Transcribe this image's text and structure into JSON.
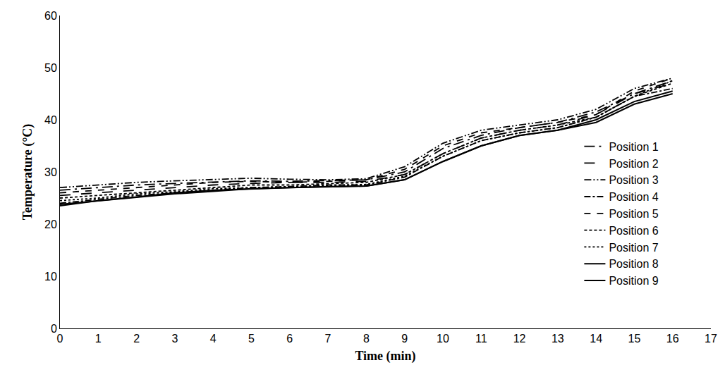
{
  "chart_data": {
    "type": "line",
    "x_label": "Time (min)",
    "y_label": "Temperature (°C)",
    "x": [
      0,
      1,
      2,
      3,
      4,
      5,
      6,
      7,
      8,
      9,
      10,
      11,
      12,
      13,
      14,
      15,
      16
    ],
    "xlim": [
      0,
      17
    ],
    "xticks": [
      0,
      1,
      2,
      3,
      4,
      5,
      6,
      7,
      8,
      9,
      10,
      11,
      12,
      13,
      14,
      15,
      16,
      17
    ],
    "ylim": [
      0,
      60
    ],
    "yticks": [
      0,
      10,
      20,
      30,
      40,
      50,
      60
    ],
    "grid": false,
    "legend": "right",
    "series": [
      {
        "name": "Position 1",
        "color": "#000000",
        "line_style": "longdashdot",
        "values": [
          26.5,
          27,
          27.5,
          27.8,
          28,
          28.3,
          28.2,
          28.3,
          28.5,
          30,
          34.5,
          37,
          38.5,
          39.5,
          41.5,
          45,
          47.5
        ]
      },
      {
        "name": "Position 2",
        "color": "#000000",
        "line_style": "longdash",
        "values": [
          25.5,
          26,
          26.5,
          27,
          27.5,
          27.8,
          28,
          28,
          28.2,
          29.5,
          33.5,
          36.5,
          38,
          39,
          41,
          45,
          47
        ]
      },
      {
        "name": "Position 3",
        "color": "#000000",
        "line_style": "dashdotdot",
        "values": [
          27,
          27.5,
          28,
          28.3,
          28.5,
          28.8,
          28.6,
          28.5,
          28.7,
          31,
          35.5,
          38,
          39,
          40,
          42,
          46,
          48
        ]
      },
      {
        "name": "Position 4",
        "color": "#000000",
        "line_style": "dashdot",
        "values": [
          24,
          24.8,
          25.5,
          26,
          26.5,
          27,
          27.2,
          27.5,
          27.5,
          29,
          33,
          36,
          37.5,
          38.5,
          40.5,
          44.5,
          46
        ]
      },
      {
        "name": "Position 5",
        "color": "#000000",
        "line_style": "dash",
        "values": [
          26,
          26.5,
          27,
          27.5,
          28,
          28.2,
          28,
          28.2,
          28.5,
          30.5,
          35,
          37.5,
          38.5,
          39.5,
          41,
          45.5,
          48
        ]
      },
      {
        "name": "Position 6",
        "color": "#000000",
        "line_style": "shortdash",
        "values": [
          25,
          25.5,
          26,
          26.5,
          27,
          27.5,
          27.5,
          27.8,
          28,
          29.5,
          33.5,
          36.5,
          38,
          39,
          40.5,
          44.5,
          47
        ]
      },
      {
        "name": "Position 7",
        "color": "#000000",
        "line_style": "dot",
        "values": [
          24.5,
          25,
          25.8,
          26.2,
          26.8,
          27,
          27.2,
          27.4,
          27.6,
          29.2,
          33,
          36,
          37.5,
          38.5,
          40.5,
          44.5,
          47.5
        ]
      },
      {
        "name": "Position 8",
        "color": "#000000",
        "line_style": "solid",
        "values": [
          23.5,
          24.5,
          25.2,
          26,
          26.5,
          26.8,
          27,
          27.2,
          27.3,
          28.5,
          32,
          35,
          37,
          38,
          40,
          43.5,
          45.5
        ]
      },
      {
        "name": "Position 9",
        "color": "#000000",
        "line_style": "solid",
        "values": [
          23.8,
          24.5,
          25.2,
          25.8,
          26.3,
          26.8,
          27,
          27.2,
          27.3,
          28.5,
          32,
          35,
          37,
          38,
          39.5,
          43,
          45
        ]
      }
    ]
  }
}
